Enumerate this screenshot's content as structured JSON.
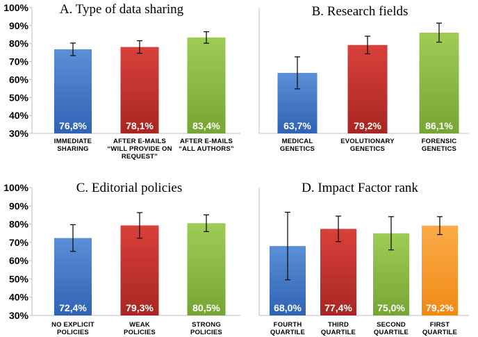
{
  "chart_data": [
    {
      "type": "bar",
      "title": "A. Type of data sharing",
      "ylim": [
        30,
        100
      ],
      "yticks": [
        "30%",
        "40%",
        "50%",
        "60%",
        "70%",
        "80%",
        "90%",
        "100%"
      ],
      "categories": [
        [
          "Immediate",
          "Sharing"
        ],
        [
          "After e-mails",
          "“will provide on",
          "request”"
        ],
        [
          "After e-mails",
          "“all authors”"
        ]
      ],
      "values": [
        76.8,
        78.1,
        83.4
      ],
      "errors": [
        3.5,
        3.5,
        3.2
      ],
      "labels": [
        "76,8%",
        "78,1%",
        "83,4%"
      ],
      "colors": [
        "blue",
        "red",
        "green"
      ]
    },
    {
      "type": "bar",
      "title": "B. Research fields",
      "ylim": [
        30,
        100
      ],
      "yticks": [],
      "categories": [
        [
          "Medical",
          "Genetics"
        ],
        [
          "Evolutionary",
          "Genetics"
        ],
        [
          "Forensic",
          "Genetics"
        ]
      ],
      "values": [
        63.7,
        79.2,
        86.1
      ],
      "errors": [
        8.9,
        4.9,
        5.3
      ],
      "labels": [
        "63,7%",
        "79,2%",
        "86,1%"
      ],
      "colors": [
        "blue",
        "red",
        "green"
      ]
    },
    {
      "type": "bar",
      "title": "C. Editorial policies",
      "ylim": [
        30,
        100
      ],
      "yticks": [
        "30%",
        "40%",
        "50%",
        "60%",
        "70%",
        "80%",
        "90%",
        "100%"
      ],
      "categories": [
        [
          "No explicit",
          "policies"
        ],
        [
          "Weak",
          "policies"
        ],
        [
          "Strong",
          "policies"
        ]
      ],
      "values": [
        72.4,
        79.3,
        80.5
      ],
      "errors": [
        7.3,
        7.0,
        4.6
      ],
      "labels": [
        "72,4%",
        "79,3%",
        "80,5%"
      ],
      "colors": [
        "blue",
        "red",
        "green"
      ]
    },
    {
      "type": "bar",
      "title": "D. Impact Factor rank",
      "ylim": [
        30,
        100
      ],
      "yticks": [],
      "categories": [
        [
          "Fourth",
          "Quartile"
        ],
        [
          "Third",
          "Quartile"
        ],
        [
          "Second",
          "Quartile"
        ],
        [
          "First",
          "Quartile"
        ]
      ],
      "values": [
        68.0,
        77.4,
        75.0,
        79.2
      ],
      "errors": [
        18.5,
        7.0,
        9.1,
        4.9
      ],
      "labels": [
        "68,0%",
        "77,4%",
        "75,0%",
        "79,2%"
      ],
      "colors": [
        "blue",
        "red",
        "green",
        "orange"
      ]
    }
  ],
  "palette": {
    "blue": [
      "#5b8fd6",
      "#2f63b5"
    ],
    "red": [
      "#d9403a",
      "#a82622"
    ],
    "green": [
      "#9fcc55",
      "#77a534"
    ],
    "orange": [
      "#fbaa48",
      "#f08a14"
    ]
  }
}
